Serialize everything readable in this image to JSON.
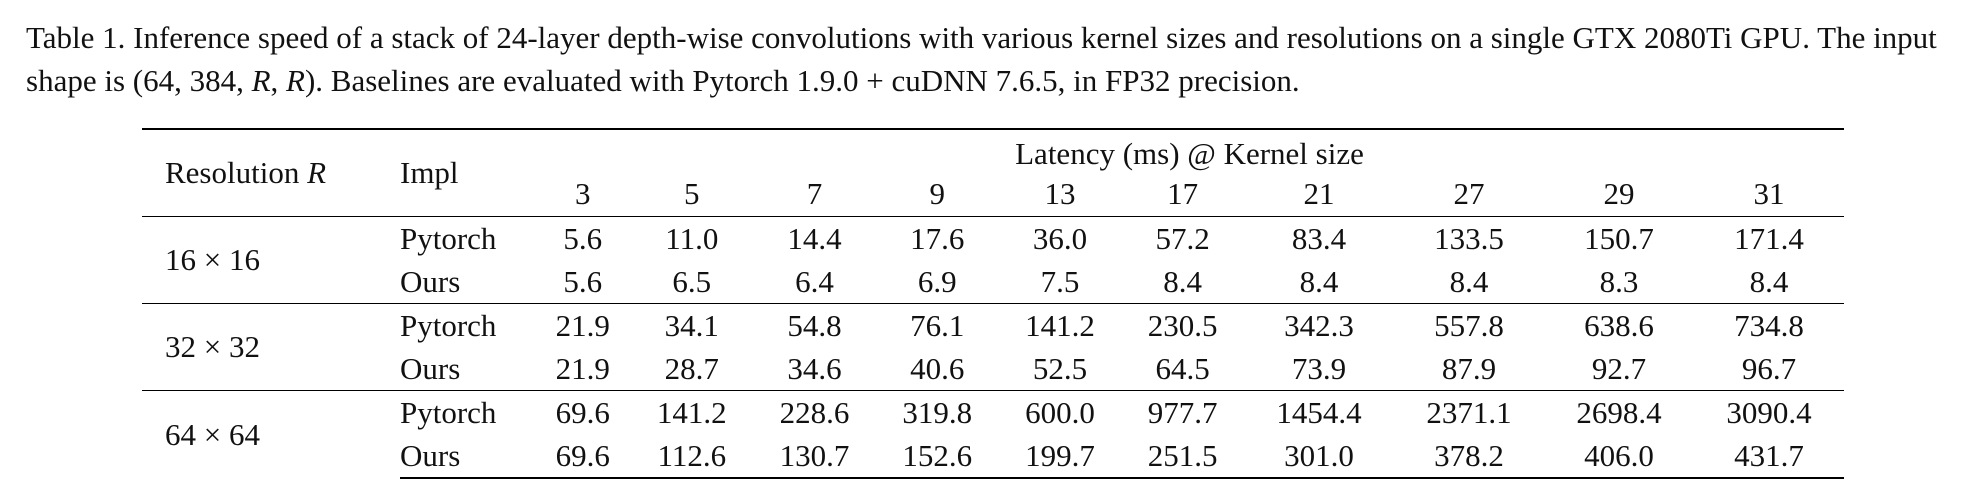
{
  "caption": {
    "lead": "Table 1. Inference speed of a stack of 24-layer depth-wise convolutions with various kernel sizes and resolutions on a single GTX 2080Ti GPU. The input shape is (64, 384, ",
    "var1": "R",
    "sep": ", ",
    "var2": "R",
    "tail": "). Baselines are evaluated with Pytorch 1.9.0 + cuDNN 7.6.5, in FP32 precision."
  },
  "table": {
    "header": {
      "resolution_label": "Resolution ",
      "resolution_var": "R",
      "impl_label": "Impl",
      "span_label": "Latency (ms) @ Kernel size",
      "kernel_sizes": [
        "3",
        "5",
        "7",
        "9",
        "13",
        "17",
        "21",
        "27",
        "29",
        "31"
      ]
    },
    "groups": [
      {
        "resolution": "16 × 16",
        "rows": [
          {
            "impl": "Pytorch",
            "values": [
              "5.6",
              "11.0",
              "14.4",
              "17.6",
              "36.0",
              "57.2",
              "83.4",
              "133.5",
              "150.7",
              "171.4"
            ]
          },
          {
            "impl": "Ours",
            "values": [
              "5.6",
              "6.5",
              "6.4",
              "6.9",
              "7.5",
              "8.4",
              "8.4",
              "8.4",
              "8.3",
              "8.4"
            ]
          }
        ]
      },
      {
        "resolution": "32 × 32",
        "rows": [
          {
            "impl": "Pytorch",
            "values": [
              "21.9",
              "34.1",
              "54.8",
              "76.1",
              "141.2",
              "230.5",
              "342.3",
              "557.8",
              "638.6",
              "734.8"
            ]
          },
          {
            "impl": "Ours",
            "values": [
              "21.9",
              "28.7",
              "34.6",
              "40.6",
              "52.5",
              "64.5",
              "73.9",
              "87.9",
              "92.7",
              "96.7"
            ]
          }
        ]
      },
      {
        "resolution": "64 × 64",
        "rows": [
          {
            "impl": "Pytorch",
            "values": [
              "69.6",
              "141.2",
              "228.6",
              "319.8",
              "600.0",
              "977.7",
              "1454.4",
              "2371.1",
              "2698.4",
              "3090.4"
            ]
          },
          {
            "impl": "Ours",
            "values": [
              "69.6",
              "112.6",
              "130.7",
              "152.6",
              "199.7",
              "251.5",
              "301.0",
              "378.2",
              "406.0",
              "431.7"
            ]
          }
        ]
      }
    ]
  }
}
